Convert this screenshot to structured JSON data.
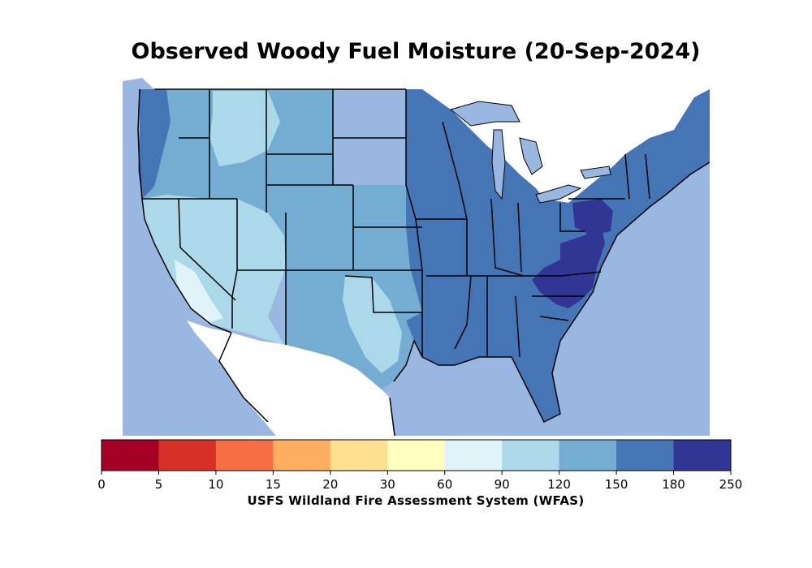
{
  "title": "Observed Woody Fuel Moisture (20-Sep-2024)",
  "colorbar": {
    "label": "USFS Wildland Fire Assessment System (WFAS)",
    "ticks": [
      "0",
      "5",
      "10",
      "15",
      "20",
      "30",
      "60",
      "90",
      "120",
      "150",
      "180",
      "250"
    ],
    "colors": [
      "#a50026",
      "#d73027",
      "#f46d43",
      "#fdae61",
      "#fee090",
      "#ffffbf",
      "#e0f3f8",
      "#abd9e9",
      "#74add1",
      "#4575b4",
      "#313695"
    ]
  },
  "map_colors": {
    "water": "#9ab7e1",
    "land_outside": "#ffffff",
    "class_60_90": "#e0f3f8",
    "class_90_120": "#abd9e9",
    "class_120_150": "#74add1",
    "class_150_180": "#4575b4",
    "class_180_250": "#313695"
  }
}
